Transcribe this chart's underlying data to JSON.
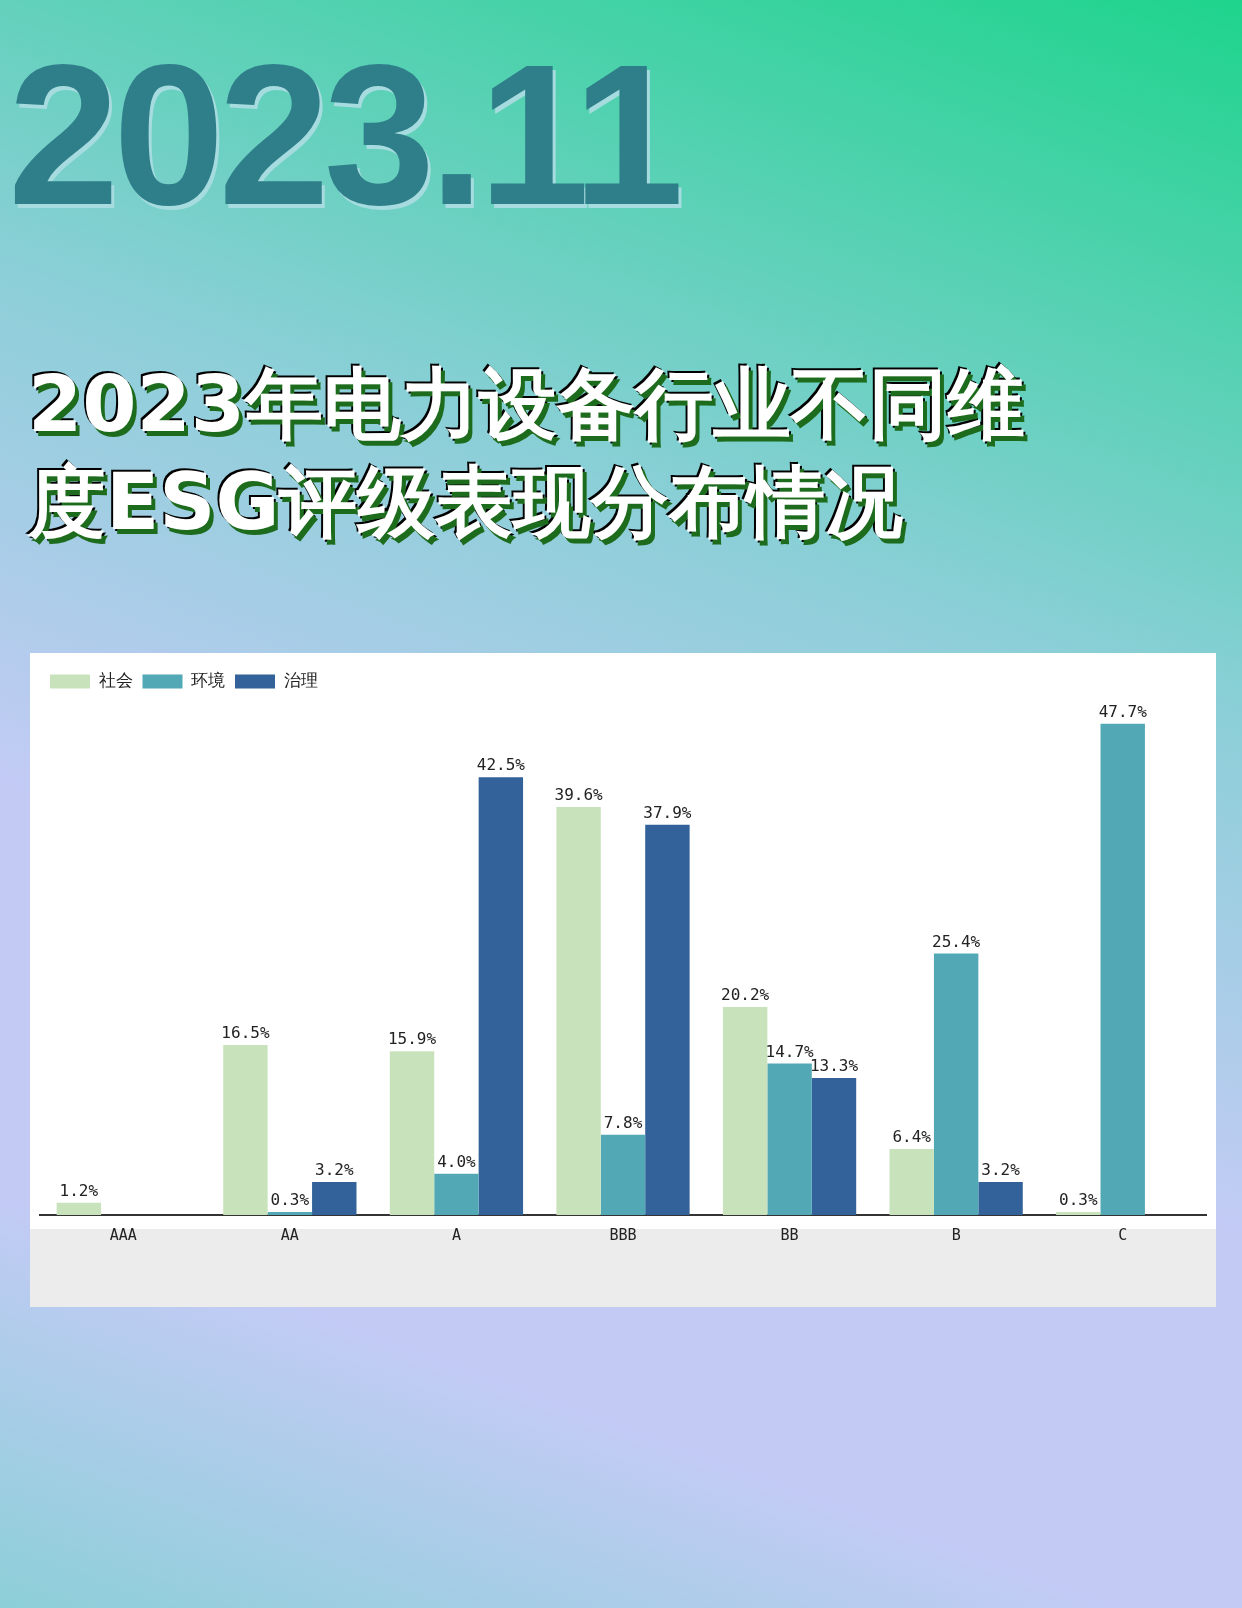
{
  "chart_data": {
    "type": "bar",
    "title": "2023年电力设备行业不同维度ESG评级表现分布情况",
    "subtitle": "2023.11",
    "categories": [
      "AAA",
      "AA",
      "A",
      "BBB",
      "BB",
      "B",
      "C"
    ],
    "series": [
      {
        "name": "社会",
        "color": "#c8e3bb",
        "values": [
          1.2,
          16.5,
          15.9,
          39.6,
          20.2,
          6.4,
          0.3
        ],
        "value_labels": [
          "1.2%",
          "16.5%",
          "15.9%",
          "39.6%",
          "20.2%",
          "6.4%",
          "0.3%"
        ]
      },
      {
        "name": "环境",
        "color": "#52a8b5",
        "values": [
          null,
          0.3,
          4.0,
          7.8,
          14.7,
          25.4,
          47.7
        ],
        "value_labels": [
          null,
          "0.3%",
          "4.0%",
          "7.8%",
          "14.7%",
          "25.4%",
          "47.7%"
        ]
      },
      {
        "name": "治理",
        "color": "#336199",
        "values": [
          null,
          3.2,
          42.5,
          37.9,
          13.3,
          3.2,
          null
        ],
        "value_labels": [
          null,
          "3.2%",
          "42.5%",
          "37.9%",
          "13.3%",
          "3.2%",
          null
        ]
      }
    ],
    "legend": "top left",
    "grid": false
  }
}
